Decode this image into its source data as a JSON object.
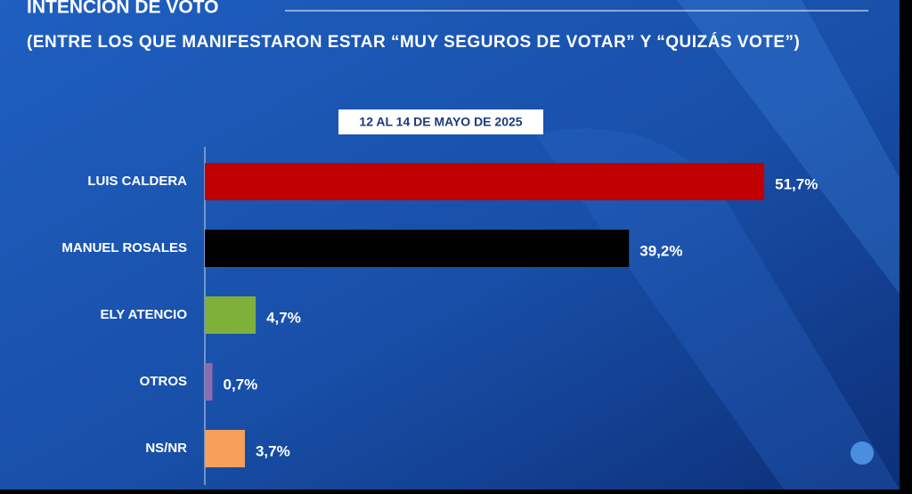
{
  "chart_data": {
    "type": "bar",
    "orientation": "horizontal",
    "title": "INTENCIÓN DE VOTO",
    "subtitle": "(ENTRE LOS QUE MANIFESTARON ESTAR “MUY SEGUROS DE VOTAR” Y “QUIZÁS VOTE”)",
    "date_label": "12 AL 14 DE MAYO DE 2025",
    "categories": [
      "LUIS CALDERA",
      "MANUEL ROSALES",
      "ELY ATENCIO",
      "OTROS",
      "NS/NR"
    ],
    "values": [
      51.7,
      39.2,
      4.7,
      0.7,
      3.7
    ],
    "value_labels": [
      "51,7%",
      "39,2%",
      "4,7%",
      "0,7%",
      "3,7%"
    ],
    "colors": [
      "#c00000",
      "#000000",
      "#7fb03a",
      "#8e6bb0",
      "#f7a05a"
    ]
  }
}
